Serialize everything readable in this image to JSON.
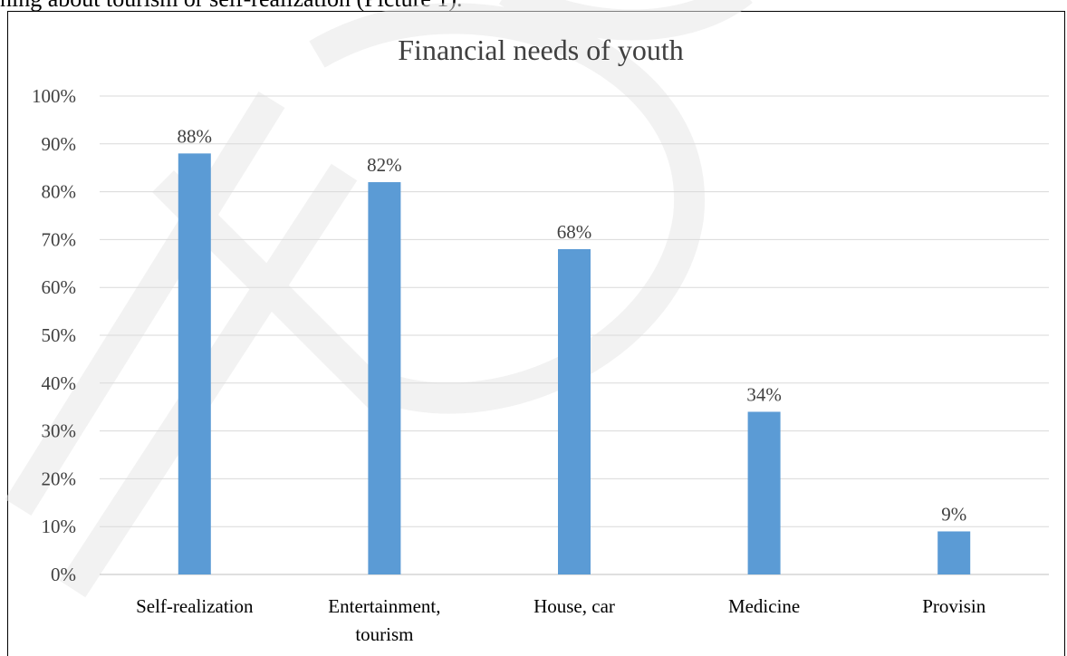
{
  "page": {
    "top_caption": "ning about tourism or self-realization (Picture 1)."
  },
  "colors": {
    "bar": "#5b9bd5",
    "gridline": "#d9d9d9",
    "axis_line": "#bfbfbf",
    "watermark": "#e8e8e8"
  },
  "chart_data": {
    "type": "bar",
    "title": "Financial needs of youth",
    "xlabel": "",
    "ylabel": "",
    "categories": [
      "Self-realization",
      "Entertainment, tourism",
      "House, car",
      "Medicine",
      "Provisin"
    ],
    "category_lines": [
      [
        "Self-realization"
      ],
      [
        "Entertainment,",
        "tourism"
      ],
      [
        "House, car"
      ],
      [
        "Medicine"
      ],
      [
        "Provisin"
      ]
    ],
    "values": [
      88,
      82,
      68,
      34,
      9
    ],
    "data_labels": [
      "88%",
      "82%",
      "68%",
      "34%",
      "9%"
    ],
    "ylim": [
      0,
      100
    ],
    "yticks": [
      0,
      10,
      20,
      30,
      40,
      50,
      60,
      70,
      80,
      90,
      100
    ],
    "ytick_labels": [
      "0%",
      "10%",
      "20%",
      "30%",
      "40%",
      "50%",
      "60%",
      "70%",
      "80%",
      "90%",
      "100%"
    ],
    "grid": true,
    "legend": "none"
  }
}
